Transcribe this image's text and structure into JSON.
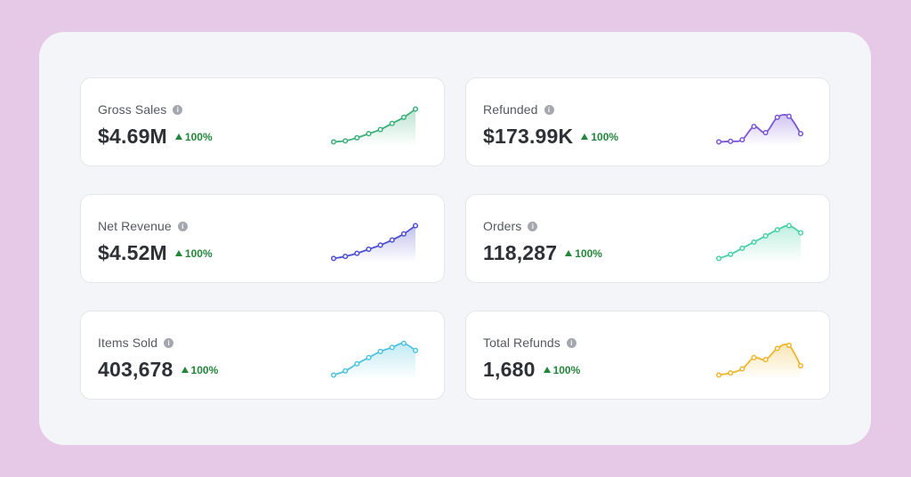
{
  "cards": [
    {
      "label": "Gross Sales",
      "value": "$4.69M",
      "delta": "100%",
      "color": "#3bb07a",
      "points": [
        4,
        5,
        8,
        12,
        16,
        22,
        28,
        36
      ]
    },
    {
      "label": "Refunded",
      "value": "$173.99K",
      "delta": "100%",
      "color": "#7a55d6",
      "points": [
        4,
        4.5,
        6,
        19,
        13,
        28,
        29,
        12
      ]
    },
    {
      "label": "Net Revenue",
      "value": "$4.52M",
      "delta": "100%",
      "color": "#4d4fd0",
      "points": [
        4,
        6,
        9,
        13,
        17,
        22,
        28,
        36
      ]
    },
    {
      "label": "Orders",
      "value": "118,287",
      "delta": "100%",
      "color": "#48d1a6",
      "points": [
        4,
        8,
        14,
        20,
        26,
        32,
        36,
        29
      ]
    },
    {
      "label": "Items Sold",
      "value": "403,678",
      "delta": "100%",
      "color": "#4ec3e0",
      "points": [
        4,
        8,
        15,
        21,
        27,
        31,
        35,
        28
      ]
    },
    {
      "label": "Total Refunds",
      "value": "1,680",
      "delta": "100%",
      "color": "#f0b52a",
      "points": [
        4,
        6,
        10,
        21,
        19,
        30,
        33,
        13
      ]
    }
  ]
}
